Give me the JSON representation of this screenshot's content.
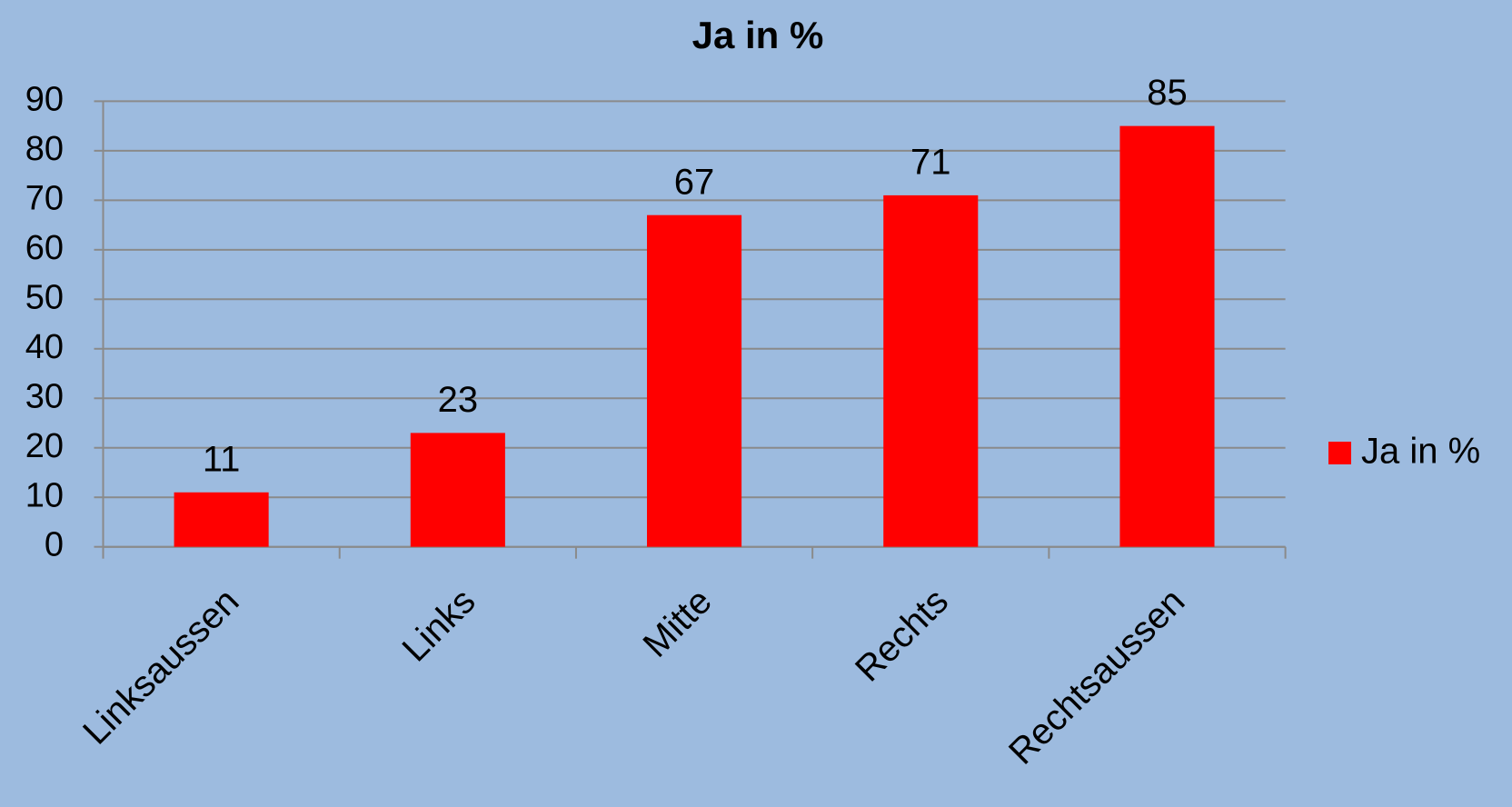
{
  "chart_data": {
    "type": "bar",
    "title": "Ja in %",
    "categories": [
      "Linksaussen",
      "Links",
      "Mitte",
      "Rechts",
      "Rechtsaussen"
    ],
    "series": [
      {
        "name": "Ja in %",
        "color": "#ff0000",
        "values": [
          11,
          23,
          67,
          71,
          85
        ]
      }
    ],
    "ylim": [
      0,
      90
    ],
    "yticks": [
      0,
      10,
      20,
      30,
      40,
      50,
      60,
      70,
      80,
      90
    ],
    "grid": true,
    "legend": "right"
  }
}
